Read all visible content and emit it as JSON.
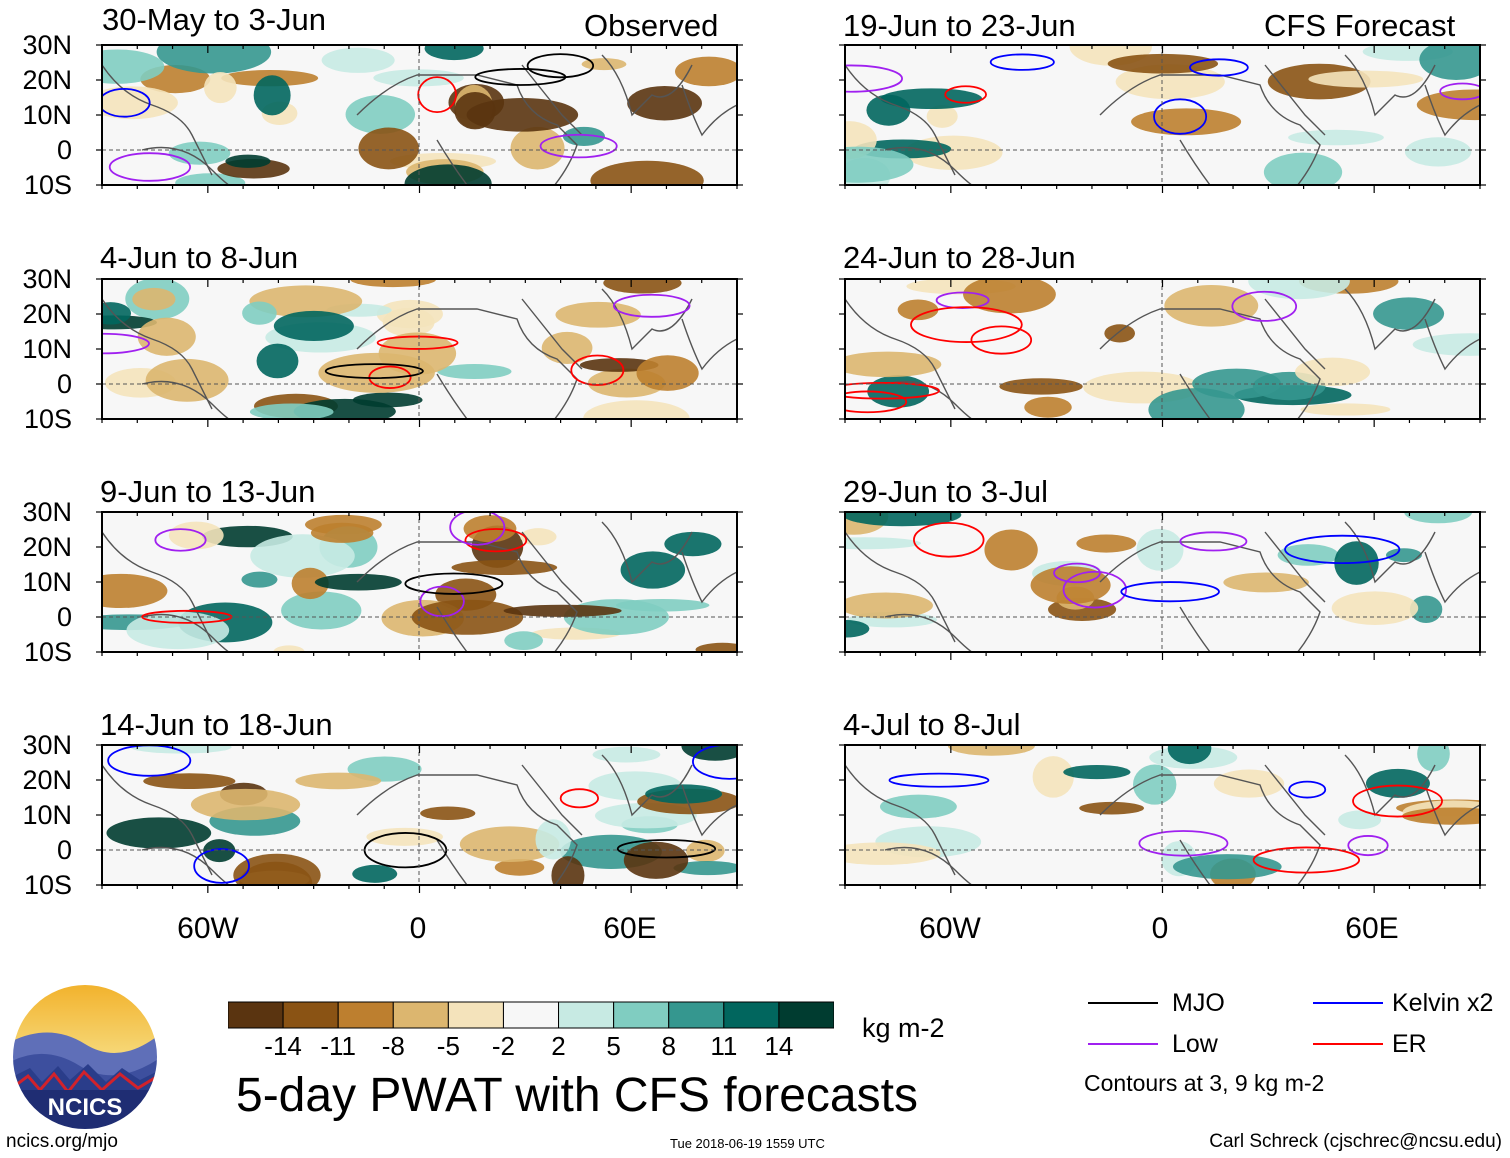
{
  "title": "5-day PWAT with CFS forecasts",
  "units": "kg m-2",
  "observed_label": "Observed",
  "forecast_label": "CFS Forecast",
  "panels": [
    {
      "period": "30-May to 3-Jun",
      "kind": "observed"
    },
    {
      "period": "4-Jun to 8-Jun",
      "kind": "observed"
    },
    {
      "period": "9-Jun to 13-Jun",
      "kind": "observed"
    },
    {
      "period": "14-Jun to 18-Jun",
      "kind": "observed"
    },
    {
      "period": "19-Jun to 23-Jun",
      "kind": "forecast"
    },
    {
      "period": "24-Jun to 28-Jun",
      "kind": "forecast"
    },
    {
      "period": "29-Jun to 3-Jul",
      "kind": "forecast"
    },
    {
      "period": "4-Jul to 8-Jul",
      "kind": "forecast"
    }
  ],
  "lat_ticks": [
    "30N",
    "20N",
    "10N",
    "0",
    "10S"
  ],
  "lon_ticks": [
    "60W",
    "0",
    "60E"
  ],
  "colorbar": {
    "labels": [
      "-14",
      "-11",
      "-8",
      "-5",
      "-2",
      "2",
      "5",
      "8",
      "11",
      "14"
    ],
    "colors": [
      "#5a3410",
      "#8a5314",
      "#bd7f2f",
      "#dcb66f",
      "#f4e3bb",
      "#f7f7f7",
      "#c7eae3",
      "#80cdc1",
      "#35978f",
      "#01665e",
      "#003c30"
    ]
  },
  "legend": {
    "items": [
      {
        "label": "MJO",
        "color": "#000000"
      },
      {
        "label": "Kelvin x2",
        "color": "#0000ff"
      },
      {
        "label": "Low",
        "color": "#a020f0"
      },
      {
        "label": "ER",
        "color": "#ff0000"
      }
    ],
    "note": "Contours at 3, 9 kg m-2"
  },
  "logo_text": "NCICS",
  "footer": {
    "left": "ncics.org/mjo",
    "middle": "Tue 2018-06-19 1559 UTC",
    "right": "Carl Schreck (cjschrec@ncsu.edu)"
  }
}
